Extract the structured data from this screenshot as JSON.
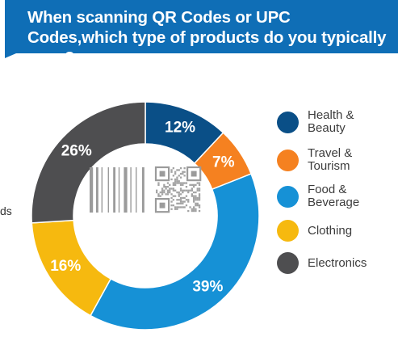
{
  "title": "When scanning QR Codes or UPC Codes,which type of products do you typically scan?",
  "cut_text": "ds",
  "colors": {
    "banner": "#0f6eb6",
    "donut_bg": "#ffffff",
    "label": "#ffffff"
  },
  "chart_data": {
    "type": "pie",
    "style": "donut",
    "categories": [
      "Health & Beauty",
      "Travel & Tourism",
      "Food & Beverage",
      "Clothing",
      "Electronics"
    ],
    "values": [
      12,
      7,
      39,
      16,
      26
    ],
    "labels": [
      "12%",
      "7%",
      "39%",
      "16%",
      "26%"
    ],
    "colors": [
      "#0a4f87",
      "#f58120",
      "#1691d6",
      "#f6b90f",
      "#4e4e50"
    ],
    "legend": "right",
    "legend_labels": [
      "Health &\nBeauty",
      "Travel &\nTourism",
      "Food &\nBeverage",
      "Clothing",
      "Electronics"
    ],
    "center_icons": [
      "barcode-icon",
      "qr-code-icon"
    ]
  }
}
